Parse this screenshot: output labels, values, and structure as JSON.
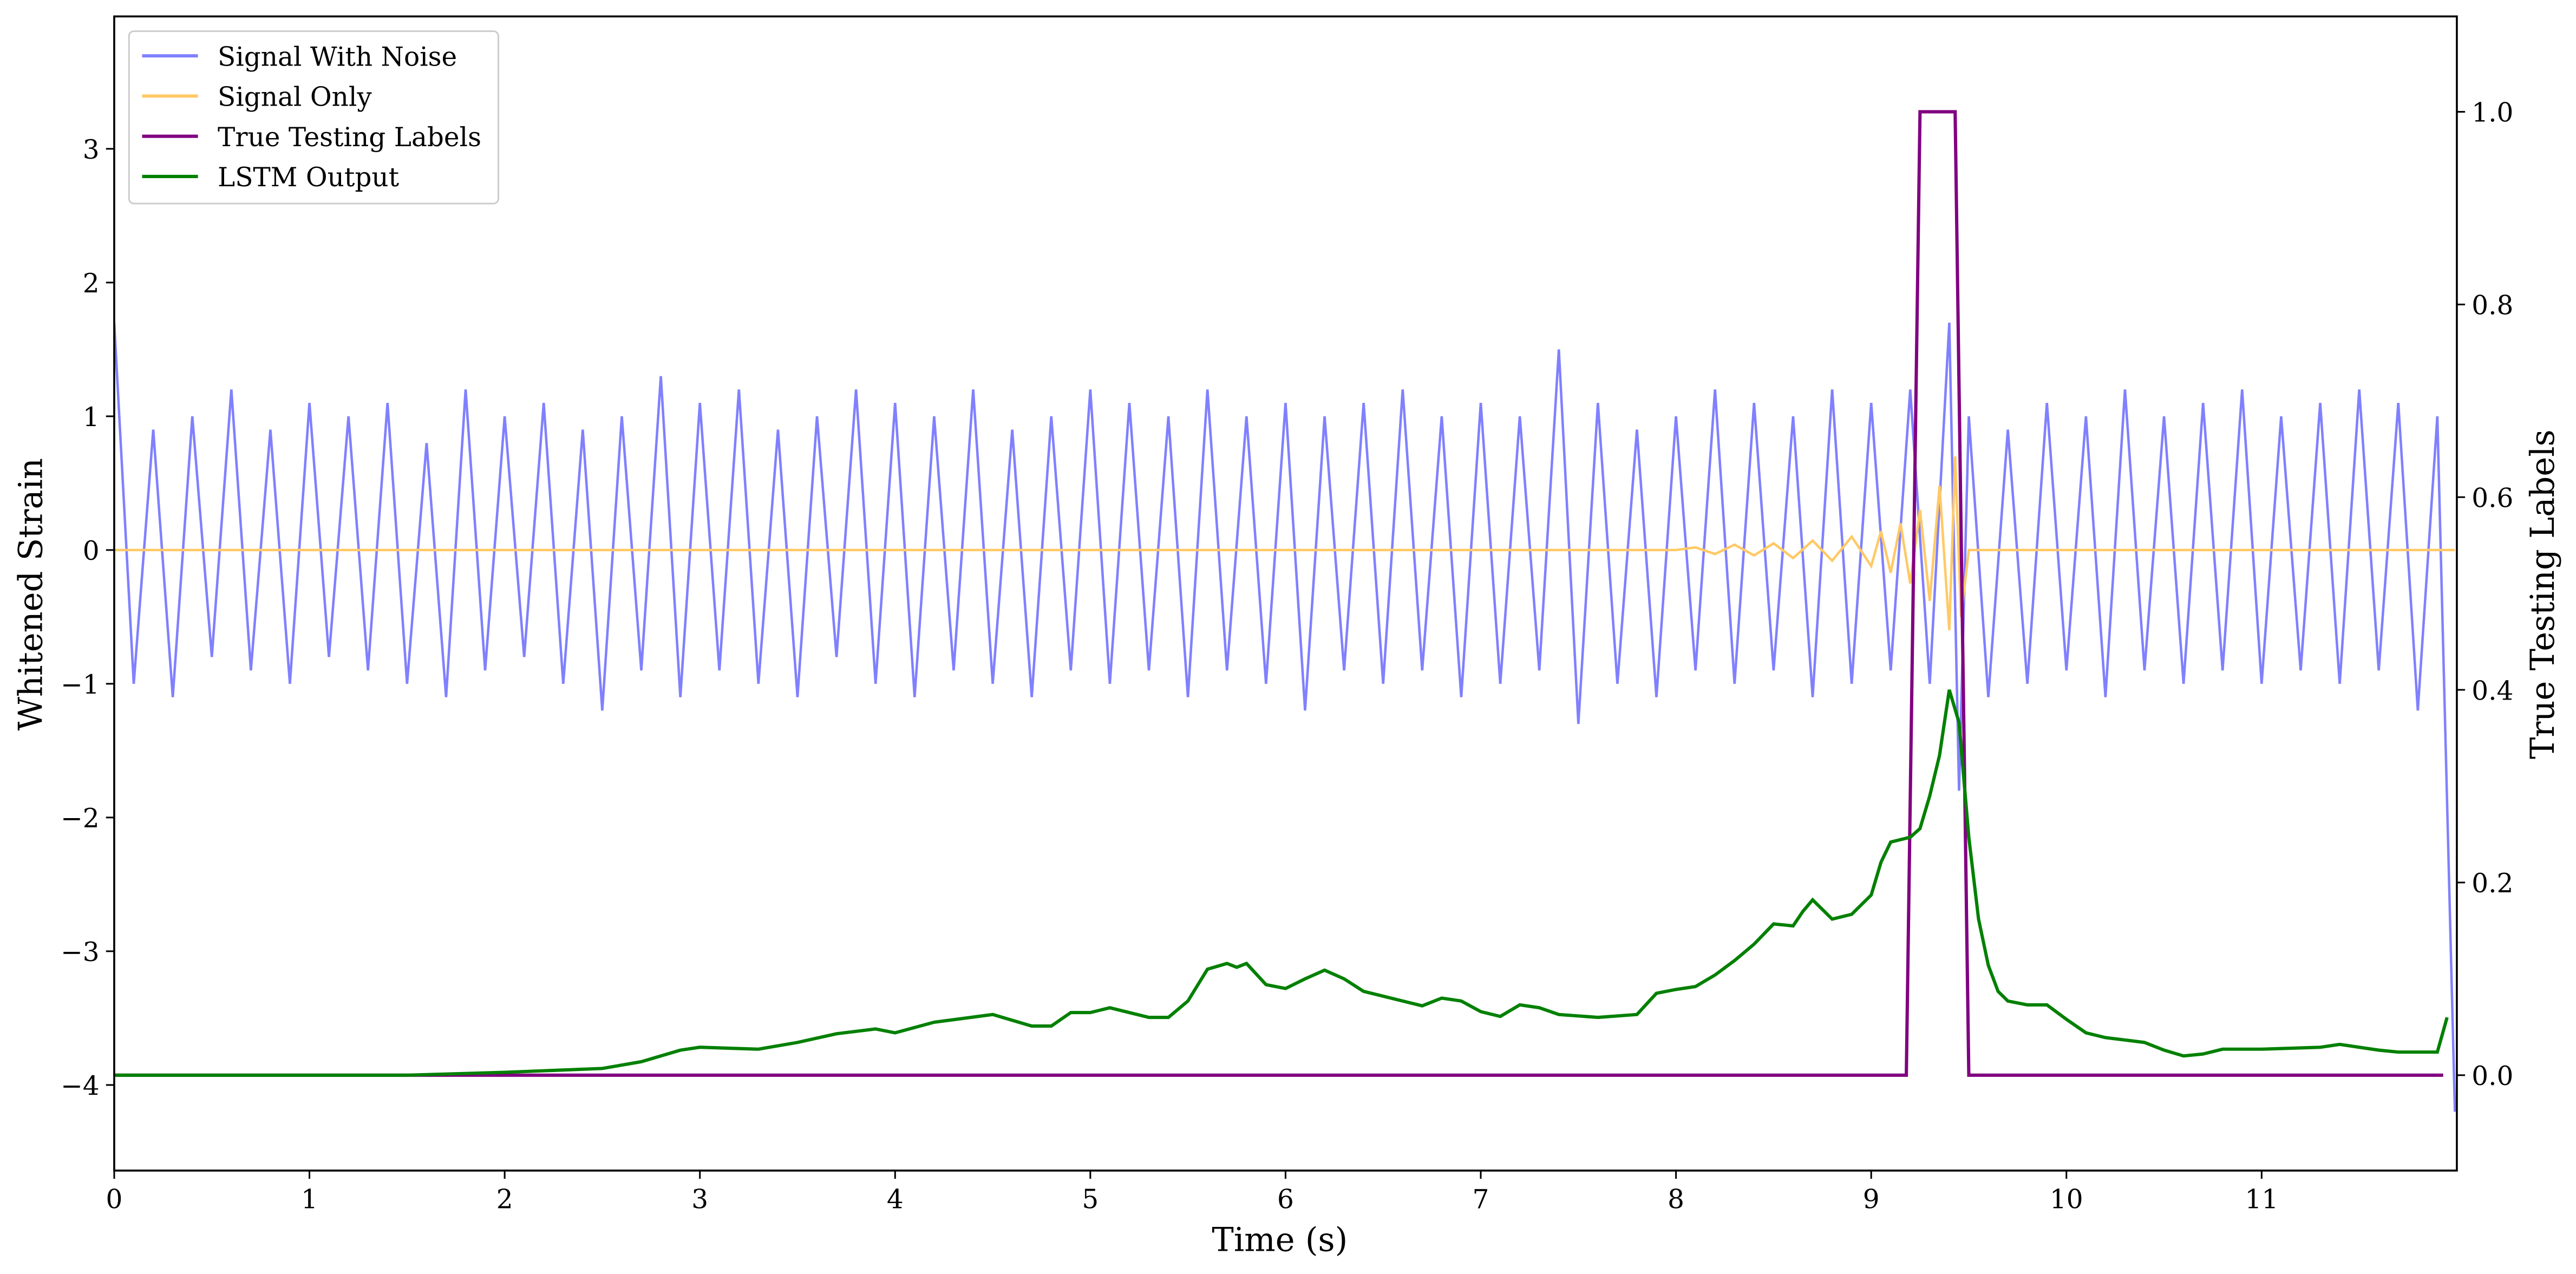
{
  "chart_data": {
    "type": "line",
    "xlabel": "Time (s)",
    "ylabel": "Whitened Strain",
    "y2label": "True Testing Labels",
    "xlim": [
      0,
      12
    ],
    "xticks": [
      0,
      1,
      2,
      3,
      4,
      5,
      6,
      7,
      8,
      9,
      10,
      11
    ],
    "ylim": [
      -4.64,
      3.99
    ],
    "yticks": [
      {
        "value": -4,
        "label": "−4"
      },
      {
        "value": -3,
        "label": "−3"
      },
      {
        "value": -2,
        "label": "−2"
      },
      {
        "value": -1,
        "label": "−1"
      },
      0,
      1,
      2,
      3
    ],
    "y2lim": [
      -0.099,
      1.099
    ],
    "y2ticks": [
      {
        "value": 0,
        "label": "0.0"
      },
      0.2,
      0.4,
      0.6,
      0.8,
      {
        "value": 1,
        "label": "1.0"
      }
    ],
    "legend": "upper left",
    "series": [
      {
        "name": "Signal With Noise",
        "color": "#8080ff",
        "x": [
          0,
          0.1,
          0.2,
          0.3,
          0.4,
          0.5,
          0.6,
          0.7,
          0.8,
          0.9,
          1,
          1.1,
          1.2,
          1.3,
          1.4,
          1.5,
          1.6,
          1.7,
          1.8,
          1.9,
          2,
          2.1,
          2.2,
          2.3,
          2.4,
          2.5,
          2.6,
          2.7,
          2.8,
          2.9,
          3,
          3.1,
          3.2,
          3.3,
          3.4,
          3.5,
          3.6,
          3.7,
          3.8,
          3.9,
          4,
          4.1,
          4.2,
          4.3,
          4.4,
          4.5,
          4.6,
          4.7,
          4.8,
          4.9,
          5,
          5.1,
          5.2,
          5.3,
          5.4,
          5.5,
          5.6,
          5.7,
          5.8,
          5.9,
          6,
          6.1,
          6.2,
          6.3,
          6.4,
          6.5,
          6.6,
          6.7,
          6.8,
          6.9,
          7,
          7.1,
          7.2,
          7.3,
          7.4,
          7.5,
          7.6,
          7.7,
          7.8,
          7.9,
          8,
          8.1,
          8.2,
          8.3,
          8.4,
          8.5,
          8.6,
          8.7,
          8.8,
          8.9,
          9,
          9.1,
          9.2,
          9.3,
          9.4,
          9.45,
          9.5,
          9.6,
          9.7,
          9.8,
          9.9,
          10,
          10.1,
          10.2,
          10.3,
          10.4,
          10.5,
          10.6,
          10.7,
          10.8,
          10.9,
          11,
          11.1,
          11.2,
          11.3,
          11.4,
          11.5,
          11.6,
          11.7,
          11.8,
          11.9,
          11.99
        ],
        "values": [
          1.7,
          -1.0,
          0.9,
          -1.1,
          1.0,
          -0.8,
          1.2,
          -0.9,
          0.9,
          -1.0,
          1.1,
          -0.8,
          1.0,
          -0.9,
          1.1,
          -1.0,
          0.8,
          -1.1,
          1.2,
          -0.9,
          1.0,
          -0.8,
          1.1,
          -1.0,
          0.9,
          -1.2,
          1.0,
          -0.9,
          1.3,
          -1.1,
          1.1,
          -0.9,
          1.2,
          -1.0,
          0.9,
          -1.1,
          1.0,
          -0.8,
          1.2,
          -1.0,
          1.1,
          -1.1,
          1.0,
          -0.9,
          1.2,
          -1.0,
          0.9,
          -1.1,
          1.0,
          -0.9,
          1.2,
          -1.0,
          1.1,
          -0.9,
          1.0,
          -1.1,
          1.2,
          -0.9,
          1.0,
          -1.0,
          1.1,
          -1.2,
          1.0,
          -0.9,
          1.1,
          -1.0,
          1.2,
          -0.9,
          1.0,
          -1.1,
          1.1,
          -1.0,
          1.0,
          -0.9,
          1.5,
          -1.3,
          1.1,
          -1.0,
          0.9,
          -1.1,
          1.0,
          -0.9,
          1.2,
          -1.0,
          1.1,
          -0.9,
          1.0,
          -1.1,
          1.2,
          -1.0,
          1.1,
          -0.9,
          1.2,
          -1.0,
          1.7,
          -1.8,
          1.0,
          -1.1,
          0.9,
          -1.0,
          1.1,
          -0.9,
          1.0,
          -1.1,
          1.2,
          -0.9,
          1.0,
          -1.0,
          1.1,
          -0.9,
          1.2,
          -1.0,
          1.0,
          -0.9,
          1.1,
          -1.0,
          1.2,
          -0.9,
          1.1,
          -1.2,
          1.0,
          -4.2
        ]
      },
      {
        "name": "Signal Only",
        "color": "#ffc966",
        "x": [
          0,
          8,
          8.1,
          8.2,
          8.3,
          8.4,
          8.5,
          8.6,
          8.7,
          8.8,
          8.9,
          9,
          9.05,
          9.1,
          9.15,
          9.2,
          9.25,
          9.3,
          9.35,
          9.4,
          9.43,
          9.46,
          9.5,
          11.99
        ],
        "values": [
          0,
          0,
          0.02,
          -0.03,
          0.04,
          -0.04,
          0.05,
          -0.06,
          0.07,
          -0.08,
          0.1,
          -0.12,
          0.14,
          -0.17,
          0.2,
          -0.25,
          0.3,
          -0.38,
          0.48,
          -0.6,
          0.7,
          -0.5,
          0,
          0
        ]
      },
      {
        "name": "True Testing Labels",
        "color": "#800080",
        "axis": "y2",
        "x": [
          0,
          9.18,
          9.25,
          9.43,
          9.5,
          11.93
        ],
        "values": [
          0,
          0,
          1,
          1,
          0,
          0
        ]
      },
      {
        "name": "LSTM Output",
        "color": "#008000",
        "axis": "y2",
        "x": [
          0,
          1.5,
          2,
          2.5,
          2.7,
          2.9,
          3,
          3.3,
          3.5,
          3.7,
          3.9,
          4,
          4.2,
          4.5,
          4.7,
          4.8,
          4.9,
          5,
          5.1,
          5.3,
          5.4,
          5.5,
          5.6,
          5.7,
          5.75,
          5.8,
          5.9,
          6,
          6.1,
          6.2,
          6.3,
          6.4,
          6.6,
          6.7,
          6.8,
          6.9,
          7,
          7.1,
          7.2,
          7.3,
          7.4,
          7.6,
          7.8,
          7.9,
          8,
          8.1,
          8.2,
          8.3,
          8.4,
          8.5,
          8.6,
          8.65,
          8.7,
          8.8,
          8.9,
          9,
          9.05,
          9.1,
          9.2,
          9.25,
          9.3,
          9.35,
          9.4,
          9.45,
          9.5,
          9.55,
          9.6,
          9.65,
          9.7,
          9.8,
          9.9,
          10,
          10.1,
          10.2,
          10.4,
          10.5,
          10.6,
          10.7,
          10.8,
          11,
          11.3,
          11.4,
          11.6,
          11.7,
          11.9,
          11.95
        ],
        "values": [
          0,
          0,
          0.003,
          0.007,
          0.014,
          0.026,
          0.029,
          0.027,
          0.034,
          0.043,
          0.048,
          0.044,
          0.055,
          0.063,
          0.051,
          0.051,
          0.065,
          0.065,
          0.07,
          0.06,
          0.06,
          0.077,
          0.11,
          0.116,
          0.112,
          0.116,
          0.094,
          0.09,
          0.1,
          0.109,
          0.1,
          0.087,
          0.077,
          0.072,
          0.08,
          0.077,
          0.066,
          0.061,
          0.073,
          0.07,
          0.063,
          0.06,
          0.063,
          0.085,
          0.089,
          0.092,
          0.104,
          0.119,
          0.136,
          0.157,
          0.155,
          0.17,
          0.182,
          0.162,
          0.167,
          0.187,
          0.221,
          0.242,
          0.247,
          0.256,
          0.29,
          0.332,
          0.4,
          0.366,
          0.247,
          0.162,
          0.114,
          0.087,
          0.077,
          0.073,
          0.073,
          0.058,
          0.044,
          0.039,
          0.034,
          0.026,
          0.02,
          0.022,
          0.027,
          0.027,
          0.029,
          0.032,
          0.026,
          0.024,
          0.024,
          0.06
        ]
      }
    ]
  }
}
